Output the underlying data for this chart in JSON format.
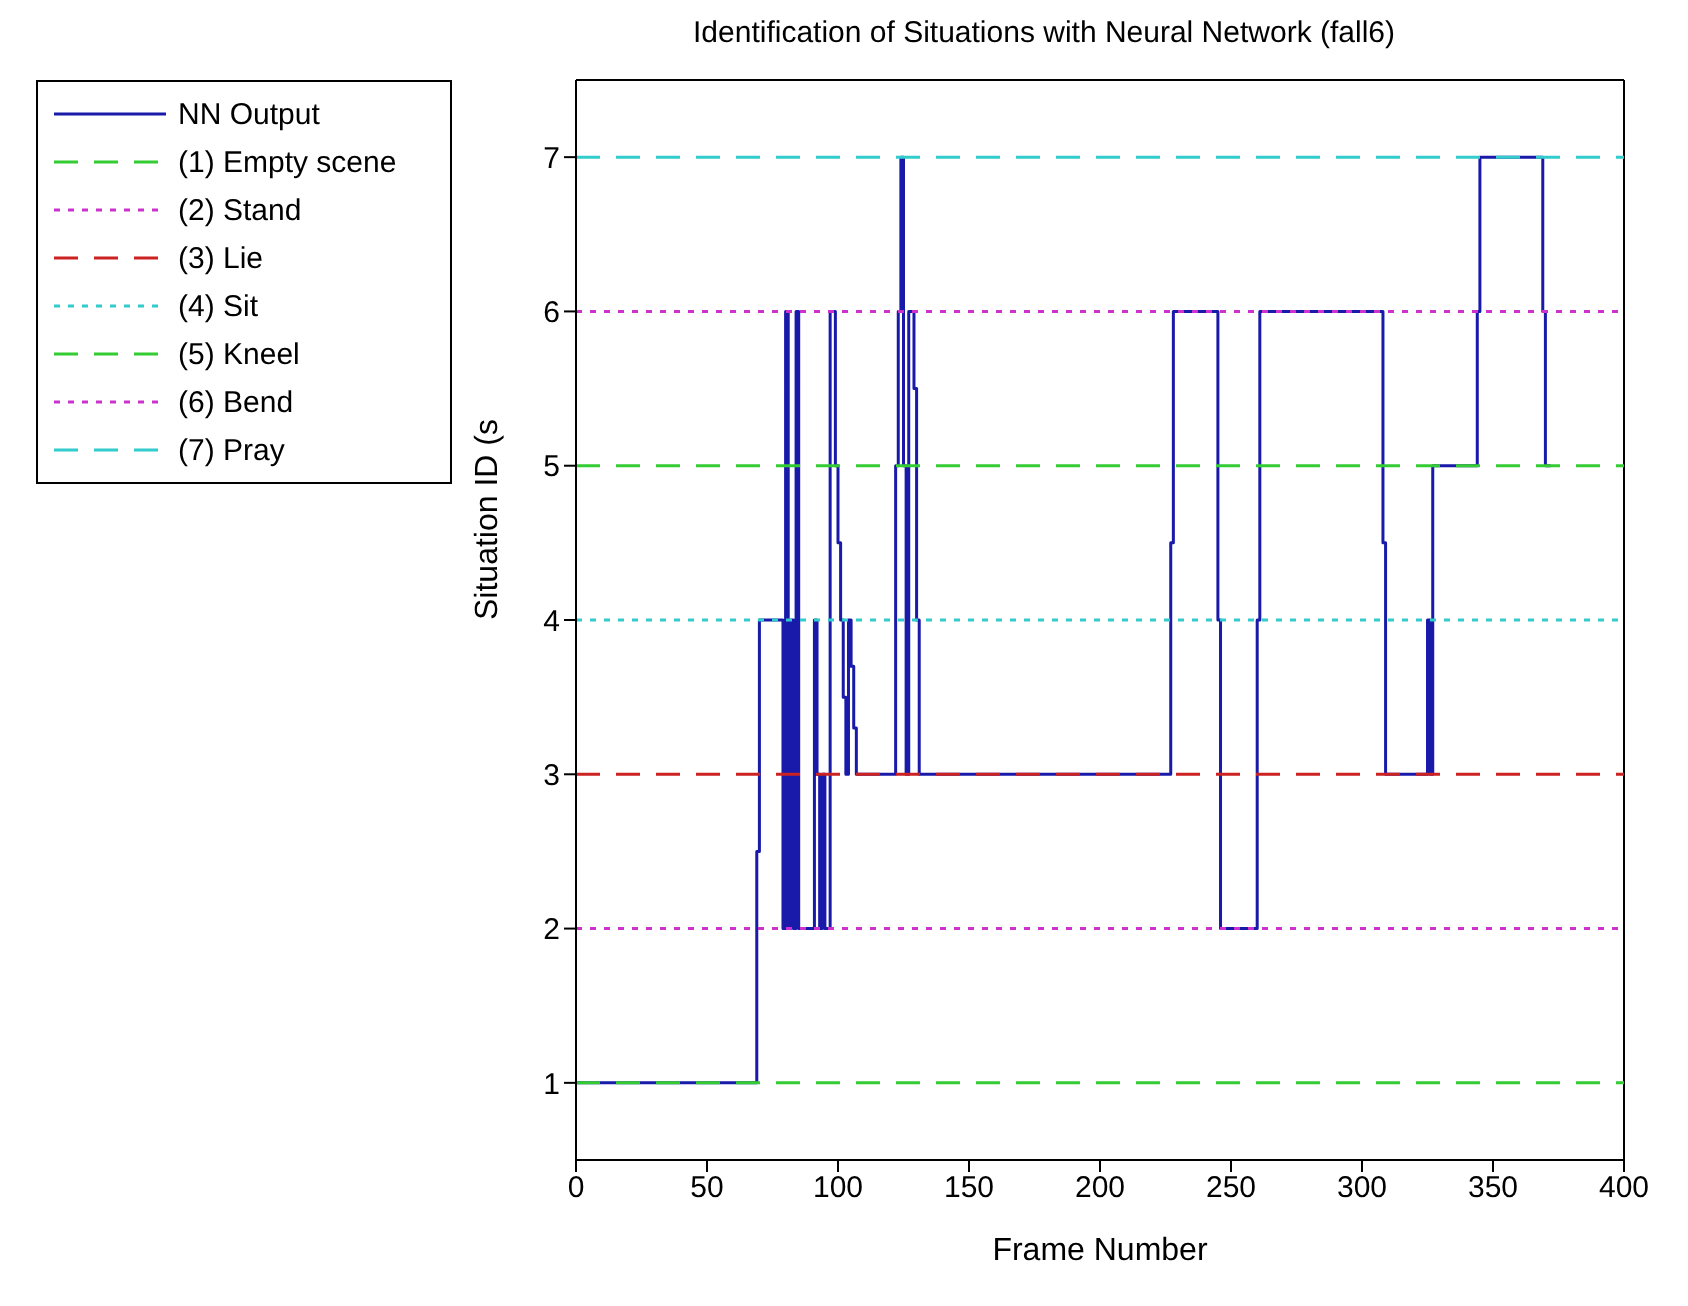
{
  "chart_data": {
    "type": "step",
    "title": "Identification of Situations with Neural Network (fall6)",
    "xlabel": "Frame Number",
    "ylabel": "Situation ID (s",
    "xlim": [
      0,
      400
    ],
    "xticks": [
      0,
      50,
      100,
      150,
      200,
      250,
      300,
      350,
      400
    ],
    "ylim": [
      0.5,
      7.5
    ],
    "yticks": [
      1,
      2,
      3,
      4,
      5,
      6,
      7
    ],
    "grid": false,
    "legend": "top left",
    "marker": "none",
    "series": [
      {
        "name": "NN Output",
        "type": "step",
        "color": "#1a1aaa",
        "line_style": "solid",
        "x": [
          0,
          69,
          70,
          79,
          80,
          81,
          82,
          83,
          84,
          85,
          91,
          92,
          93,
          94,
          95,
          97,
          99,
          100,
          101,
          102,
          103,
          104,
          105,
          106,
          107,
          122,
          123,
          124,
          125,
          126,
          127,
          129,
          130,
          131,
          227,
          228,
          245,
          246,
          260,
          261,
          308,
          309,
          325,
          326,
          327,
          344,
          345,
          369,
          370,
          372
        ],
        "values": [
          1,
          2.5,
          4,
          2,
          6,
          2,
          4,
          2,
          6,
          2,
          4,
          3,
          2,
          3,
          2,
          6,
          5,
          4.5,
          4,
          3.5,
          3,
          4,
          3.7,
          3.3,
          3,
          5,
          6,
          7,
          5,
          3,
          6,
          5.5,
          4,
          3,
          4.5,
          6,
          4,
          2,
          4,
          6,
          4.5,
          3,
          4,
          3,
          5,
          6,
          7,
          6,
          5,
          5
        ]
      },
      {
        "name": "(1) Empty scene",
        "type": "line",
        "color": "#33cc33",
        "line_style": "dashed",
        "x": [
          0,
          400
        ],
        "values": [
          1,
          1
        ]
      },
      {
        "name": "(2) Stand",
        "type": "line",
        "color": "#cc33cc",
        "line_style": "dotted",
        "x": [
          0,
          400
        ],
        "values": [
          2,
          2
        ]
      },
      {
        "name": "(3) Lie",
        "type": "line",
        "color": "#cc2222",
        "line_style": "dashed",
        "x": [
          0,
          400
        ],
        "values": [
          3,
          3
        ]
      },
      {
        "name": "(4) Sit",
        "type": "line",
        "color": "#33cccc",
        "line_style": "dotted",
        "x": [
          0,
          400
        ],
        "values": [
          4,
          4
        ]
      },
      {
        "name": "(5) Kneel",
        "type": "line",
        "color": "#33cc33",
        "line_style": "dashed",
        "x": [
          0,
          400
        ],
        "values": [
          5,
          5
        ]
      },
      {
        "name": "(6) Bend",
        "type": "line",
        "color": "#cc33cc",
        "line_style": "dotted",
        "x": [
          0,
          400
        ],
        "values": [
          6,
          6
        ]
      },
      {
        "name": "(7) Pray",
        "type": "line",
        "color": "#33cccc",
        "line_style": "dashed",
        "x": [
          0,
          400
        ],
        "values": [
          7,
          7
        ]
      }
    ]
  }
}
